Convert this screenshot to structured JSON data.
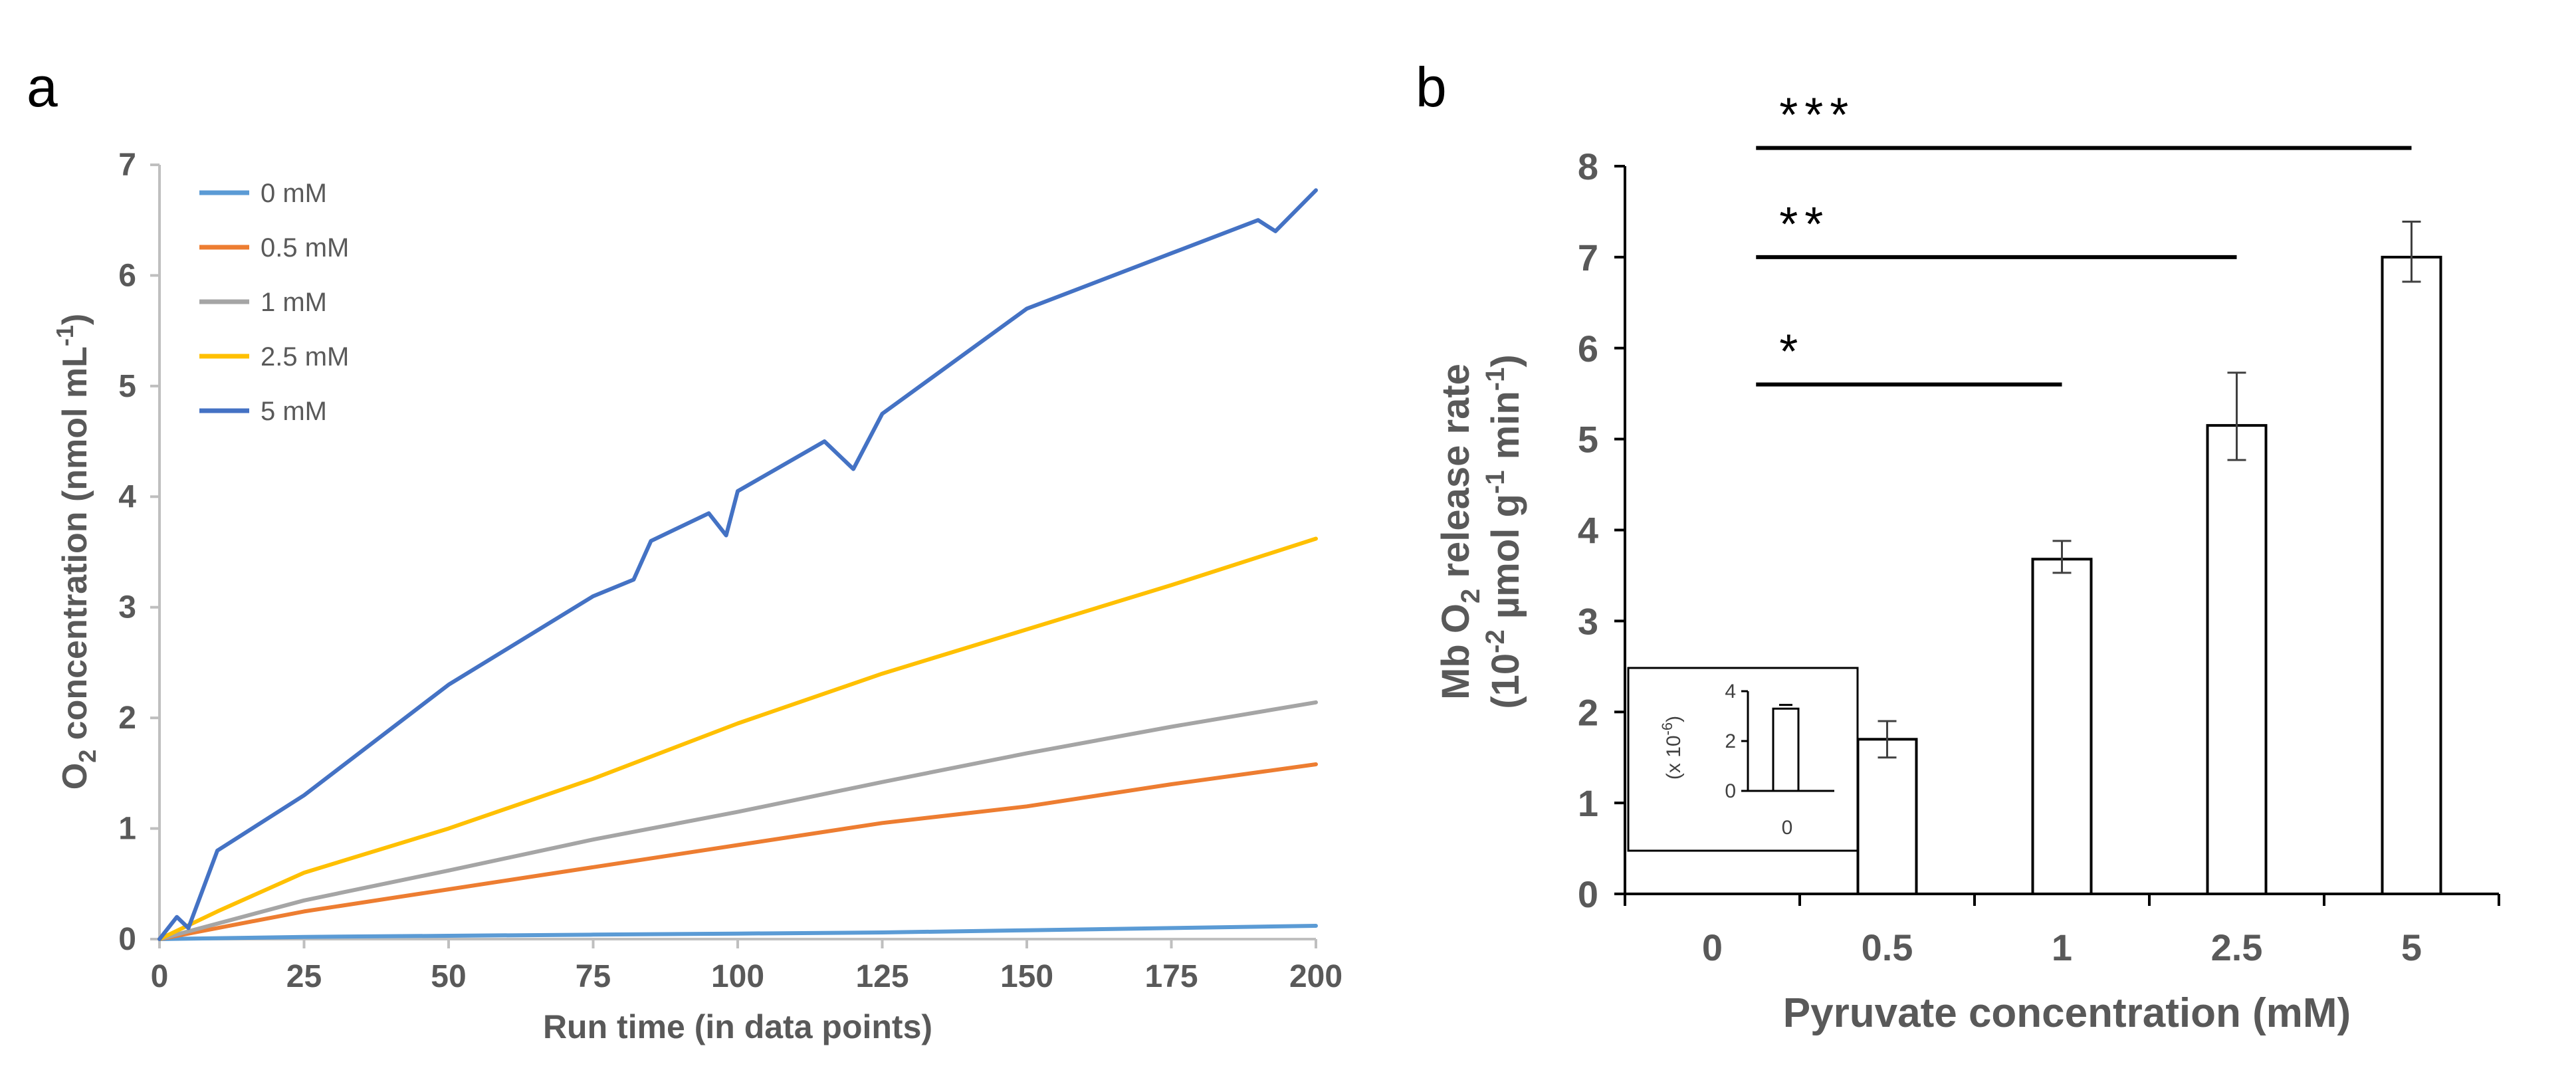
{
  "chart_data": [
    {
      "panel": "a",
      "type": "line",
      "title": "",
      "xlabel": "Run time (in data points)",
      "ylabel_parts": [
        "O",
        "2",
        " concentration (nmol mL",
        "-1",
        ")"
      ],
      "xlim": [
        0,
        200
      ],
      "ylim": [
        0,
        7
      ],
      "xticks": [
        0,
        25,
        50,
        75,
        100,
        125,
        150,
        175,
        200
      ],
      "yticks": [
        0,
        1,
        2,
        3,
        4,
        5,
        6,
        7
      ],
      "legend_position": "top-left",
      "series": [
        {
          "name": "0 mM",
          "color": "#5b9bd5",
          "x": [
            0,
            25,
            50,
            75,
            100,
            125,
            150,
            175,
            200
          ],
          "y": [
            0,
            0.02,
            0.03,
            0.04,
            0.05,
            0.06,
            0.08,
            0.1,
            0.12
          ]
        },
        {
          "name": "0.5 mM",
          "color": "#ed7d31",
          "x": [
            0,
            10,
            25,
            50,
            75,
            100,
            125,
            150,
            175,
            200
          ],
          "y": [
            0,
            0.1,
            0.25,
            0.45,
            0.65,
            0.85,
            1.05,
            1.2,
            1.4,
            1.58
          ]
        },
        {
          "name": "1 mM",
          "color": "#a5a5a5",
          "x": [
            0,
            25,
            50,
            75,
            100,
            125,
            150,
            175,
            200
          ],
          "y": [
            0,
            0.35,
            0.62,
            0.9,
            1.15,
            1.42,
            1.68,
            1.92,
            2.14
          ]
        },
        {
          "name": "2.5 mM",
          "color": "#ffc000",
          "x": [
            0,
            10,
            25,
            50,
            75,
            100,
            125,
            150,
            175,
            200
          ],
          "y": [
            0,
            0.25,
            0.6,
            1.0,
            1.45,
            1.95,
            2.4,
            2.8,
            3.2,
            3.62
          ]
        },
        {
          "name": "5 mM",
          "color": "#4472c4",
          "x": [
            0,
            3,
            5,
            10,
            25,
            50,
            75,
            82,
            85,
            95,
            98,
            100,
            115,
            120,
            125,
            150,
            175,
            190,
            193,
            200
          ],
          "y": [
            0,
            0.2,
            0.1,
            0.8,
            1.3,
            2.3,
            3.1,
            3.25,
            3.6,
            3.85,
            3.65,
            4.05,
            4.5,
            4.25,
            4.75,
            5.7,
            6.2,
            6.5,
            6.4,
            6.77
          ]
        }
      ]
    },
    {
      "panel": "b",
      "type": "bar",
      "title": "",
      "xlabel": "Pyruvate concentration (mM)",
      "ylabel_line1_parts": [
        "Mb O",
        "2",
        " release rate"
      ],
      "ylabel_line2_parts": [
        "(10",
        "-2",
        " µmol g",
        "-1",
        " min",
        "-1",
        ")"
      ],
      "ylim": [
        0,
        8
      ],
      "yticks": [
        0,
        1,
        2,
        3,
        4,
        5,
        6,
        7,
        8
      ],
      "categories": [
        "0",
        "0.5",
        "1",
        "2.5",
        "5"
      ],
      "values": [
        0,
        1.7,
        3.68,
        5.15,
        7.0
      ],
      "error_low": [
        0,
        0.2,
        0.15,
        0.38,
        0.27
      ],
      "error_high": [
        0,
        0.2,
        0.2,
        0.58,
        0.39
      ],
      "significance": [
        {
          "from": "0",
          "to": "1",
          "label": "*",
          "y": 5.6
        },
        {
          "from": "0",
          "to": "2.5",
          "label": "**",
          "y": 7.0
        },
        {
          "from": "0",
          "to": "5",
          "label": "***",
          "y": 8.2
        }
      ],
      "inset": {
        "category": "0",
        "value": 3.3,
        "error": 0.15,
        "ylim": [
          0,
          4
        ],
        "yticks": [
          0,
          2,
          4
        ],
        "ylabel": "(x 10",
        "ylabel_sup": "-6",
        "ylabel_close": ")"
      }
    }
  ],
  "panel_labels": {
    "a": "a",
    "b": "b"
  }
}
